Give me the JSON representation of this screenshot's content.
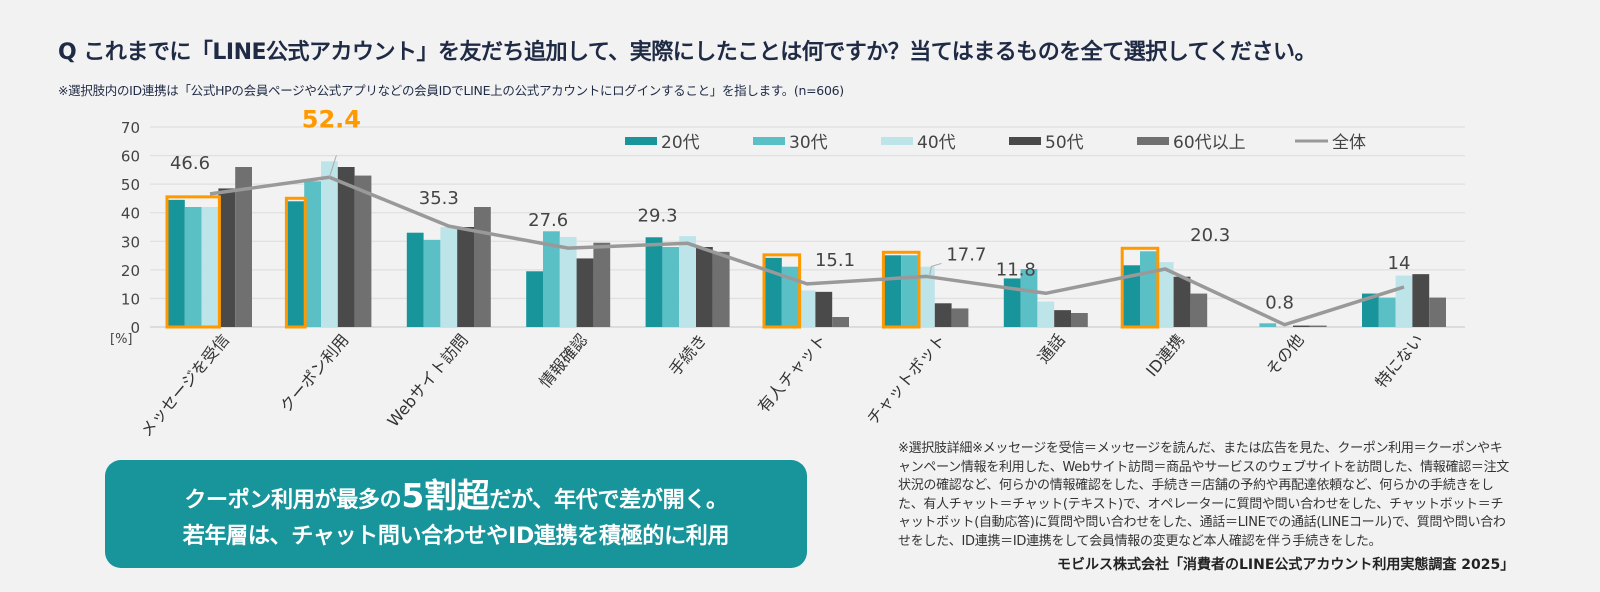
{
  "title": "Q これまでに「LINE公式アカウント」を友だち追加して、実際にしたことは何ですか？当てはまるものを全て選択してください。",
  "subtitle": "※選択肢内のID連携は「公式HPの会員ページや公式アプリなどの会員IDでLINE上の公式アカウントにログインすること」を指します。(n=606)",
  "chart_data": {
    "type": "bar",
    "ylabel": "[%]",
    "ylim": [
      0,
      70
    ],
    "yticks": [
      0,
      10,
      20,
      30,
      40,
      50,
      60,
      70
    ],
    "grid": true,
    "legend_position": "top-right",
    "categories": [
      "メッセージを受信",
      "クーポン利用",
      "Webサイト訪問",
      "情報確認",
      "手続き",
      "有人チャット",
      "チャットボット",
      "通話",
      "ID連携",
      "その他",
      "特にない"
    ],
    "series": [
      {
        "name": "20代",
        "color": "#17959b",
        "values": [
          44.5,
          44,
          33,
          19.5,
          31.4,
          24.2,
          25.1,
          17,
          21.6,
          0,
          11.7
        ]
      },
      {
        "name": "30代",
        "color": "#5bbfc6",
        "values": [
          42,
          51,
          30.5,
          33.5,
          28,
          21.1,
          25.1,
          20.3,
          26.5,
          1.3,
          10.3
        ]
      },
      {
        "name": "40代",
        "color": "#bde4e8",
        "values": [
          42,
          58,
          35,
          31.5,
          31.8,
          12.8,
          21.1,
          8.9,
          22.7,
          0,
          18
        ]
      },
      {
        "name": "50代",
        "color": "#4a4a4a",
        "values": [
          48.5,
          56,
          35,
          24,
          28,
          12.3,
          8.3,
          5.9,
          17.6,
          0.5,
          18.5
        ]
      },
      {
        "name": "60代以上",
        "color": "#707070",
        "values": [
          56,
          53,
          42,
          29.5,
          26.3,
          3.5,
          6.5,
          4.9,
          11.7,
          0.5,
          10.3
        ]
      }
    ],
    "line": {
      "name": "全体",
      "color": "#999999",
      "values": [
        46.6,
        52.4,
        35.3,
        27.6,
        29.3,
        15.1,
        17.7,
        11.8,
        20.3,
        0.8,
        14
      ]
    },
    "highlight_color": "#ff9900",
    "highlights": [
      {
        "category": "メッセージを受信",
        "series": [
          "20代",
          "30代",
          "40代"
        ]
      },
      {
        "category": "クーポン利用",
        "series": [
          "20代"
        ]
      },
      {
        "category": "有人チャット",
        "series": [
          "20代",
          "30代"
        ]
      },
      {
        "category": "チャットボット",
        "series": [
          "20代",
          "30代"
        ]
      },
      {
        "category": "ID連携",
        "series": [
          "20代",
          "30代"
        ]
      }
    ],
    "emphasized_label": {
      "category": "クーポン利用",
      "color": "#ff9900"
    }
  },
  "callout": {
    "line1_a": "クーポン利用が最多の",
    "line1_big": "5割超",
    "line1_b": "だが、年代で差が開く。",
    "line2": "若年層は、チャット問い合わせやID連携を積極的に利用"
  },
  "note": "※選択肢詳細※メッセージを受信＝メッセージを読んだ、または広告を見た、クーポン利用＝クーポンやキャンペーン情報を利用した、Webサイト訪問＝商品やサービスのウェブサイトを訪問した、情報確認＝注文状況の確認など、何らかの情報確認をした、手続き＝店舗の予約や再配達依頼など、何らかの手続きをした、有人チャット＝チャット(テキスト)で、オペレーターに質問や問い合わせをした、チャットボット＝チャットボット(自動応答)に質問や問い合わせをした、通話＝LINEでの通話(LINEコール)で、質問や問い合わせをした、ID連携＝ID連携をして会員情報の変更など本人確認を伴う手続きをした。",
  "source": "モビルス株式会社「消費者のLINE公式アカウント利用実態調査  2025」"
}
